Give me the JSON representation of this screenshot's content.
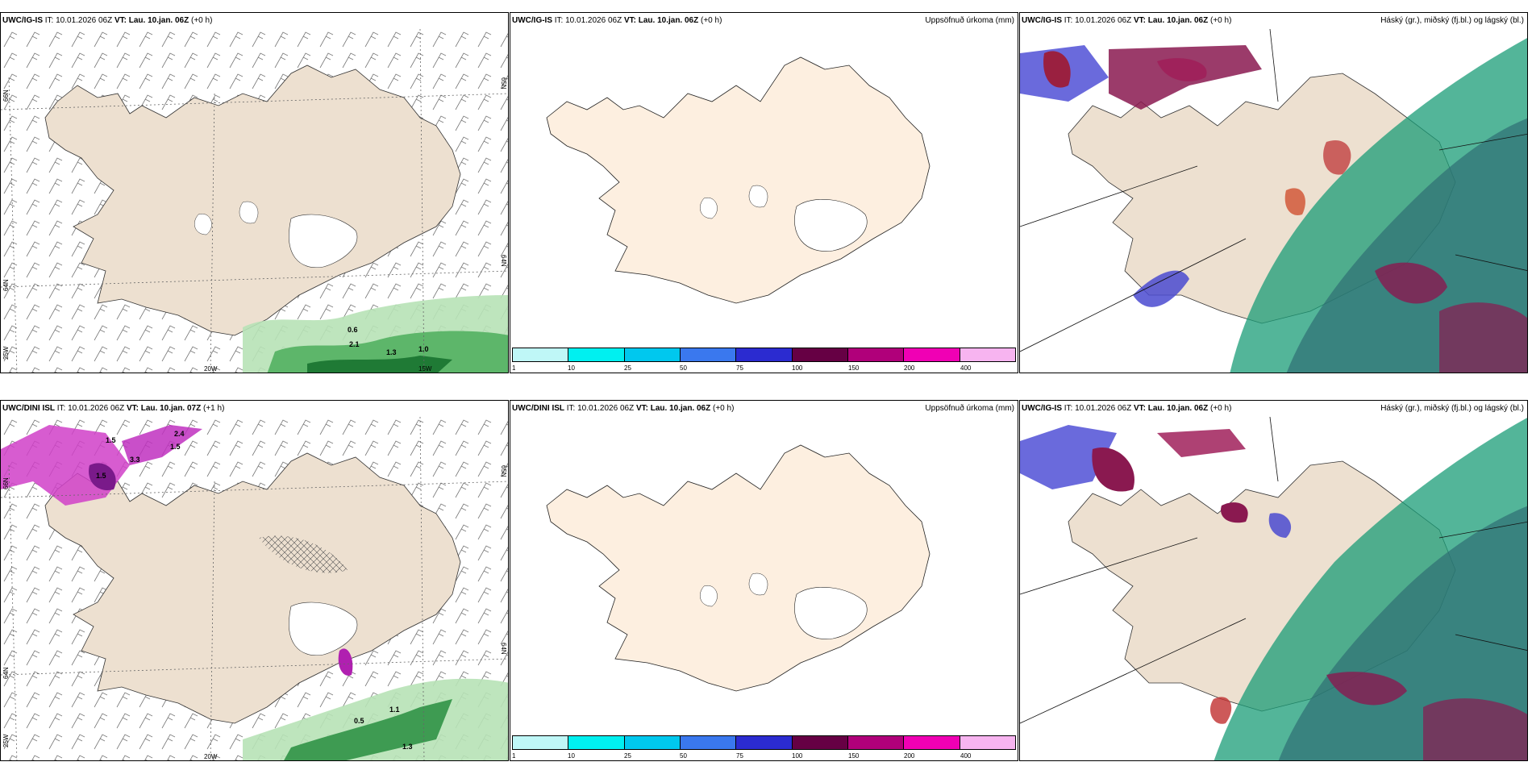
{
  "panels": [
    {
      "model": "UWC/IG-IS",
      "it": "IT: 10.01.2026 06Z",
      "vt_label": "VT:",
      "vt": "Lau. 10.jan. 06Z",
      "lead": "(+0 h)",
      "right": ""
    },
    {
      "model": "UWC/IG-IS",
      "it": "IT: 10.01.2026 06Z",
      "vt_label": "VT:",
      "vt": "Lau. 10.jan. 06Z",
      "lead": "(+0 h)",
      "right": "Uppsöfnuð úrkoma (mm)"
    },
    {
      "model": "UWC/IG-IS",
      "it": "IT: 10.01.2026 06Z",
      "vt_label": "VT:",
      "vt": "Lau. 10.jan. 06Z",
      "lead": "(+0 h)",
      "right": "Háský (gr.), miðský (fj.bl.) og lágský (bl.)"
    },
    {
      "model": "UWC/DINI ISL",
      "it": "IT: 10.01.2026 06Z",
      "vt_label": "VT:",
      "vt": "Lau. 10.jan. 07Z",
      "lead": "(+1 h)",
      "right": ""
    },
    {
      "model": "UWC/DINI ISL",
      "it": "IT: 10.01.2026 06Z",
      "vt_label": "VT:",
      "vt": "Lau. 10.jan. 06Z",
      "lead": "(+0 h)",
      "right": "Uppsöfnuð úrkoma (mm)"
    },
    {
      "model": "UWC/IG-IS",
      "it": "IT: 10.01.2026 06Z",
      "vt_label": "VT:",
      "vt": "Lau. 10.jan. 06Z",
      "lead": "(+0 h)",
      "right": "Háský (gr.), miðský (fj.bl.) og lágský (bl.)"
    }
  ],
  "axis_labels": {
    "lat66": "66N",
    "lat64": "64N",
    "lat65": "65N",
    "lon25": "25W",
    "lon20": "20W",
    "lon15": "15W"
  },
  "colorbar": {
    "ticks": [
      "1",
      "10",
      "25",
      "50",
      "75",
      "100",
      "150",
      "200",
      "400"
    ],
    "colors": [
      "#bff7f7",
      "#00f0f0",
      "#00c8ee",
      "#3a78ee",
      "#2b2bd0",
      "#660044",
      "#b0007a",
      "#f000b4",
      "#f7b4f0"
    ]
  },
  "contour_labels_top": [
    "0.6",
    "2.1",
    "1.3",
    "1.0"
  ],
  "contour_labels_bottom": [
    "1.5",
    "3.3",
    "1.5",
    "2.4",
    "1.5",
    "0.5",
    "1.1",
    "1.3"
  ]
}
